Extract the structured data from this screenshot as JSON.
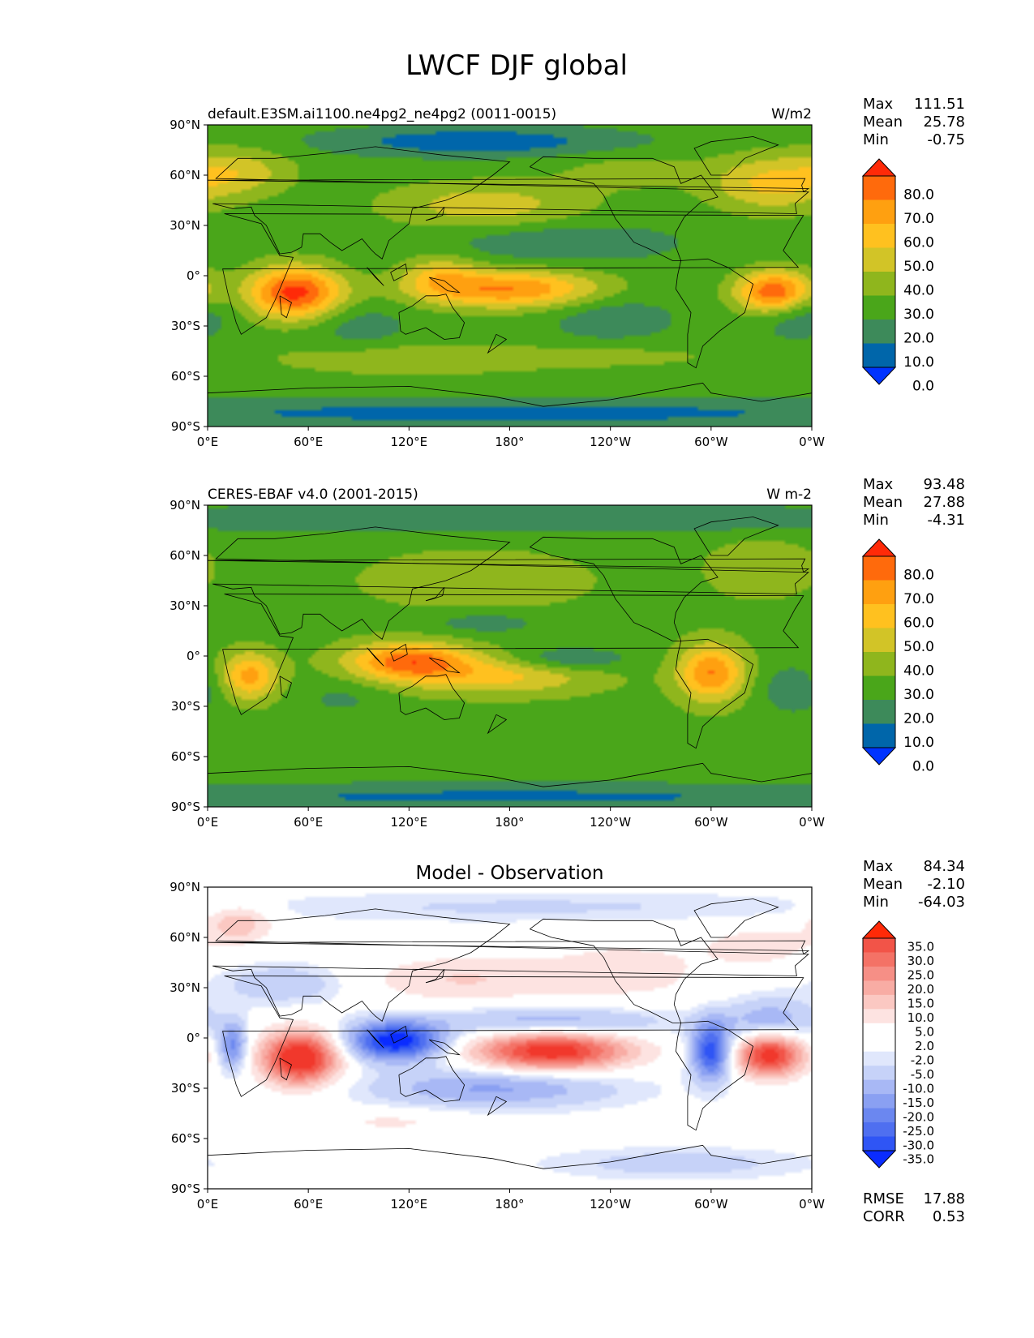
{
  "figure": {
    "title": "LWCF DJF global",
    "colors": {
      "seq": [
        "#0033ff",
        "#0066aa",
        "#3d8a5a",
        "#4aa61a",
        "#8fb61d",
        "#d2c427",
        "#ffc11f",
        "#ffa010",
        "#ff6a0c",
        "#ff2a08"
      ],
      "div": [
        "#0a2cff",
        "#2f55f5",
        "#4f6ff0",
        "#6b87f0",
        "#8aa0f2",
        "#a8b8f5",
        "#c6d2f8",
        "#e0e7fc",
        "#ffffff",
        "#ffffff",
        "#fde3e1",
        "#fbc8c2",
        "#f8aca4",
        "#f68f86",
        "#f47266",
        "#f25448",
        "#f1382c",
        "#ff2a08"
      ]
    }
  },
  "chart_data": [
    {
      "type": "heatmap",
      "subtitle_left": "default.E3SM.ai1100.ne4pg2_ne4pg2 (0011-0015)",
      "subtitle_center": "",
      "subtitle_right": "W/m2",
      "stats": [
        {
          "label": "Max",
          "value": "111.51"
        },
        {
          "label": "Mean",
          "value": "25.78"
        },
        {
          "label": "Min",
          "value": "-0.75"
        }
      ],
      "extra_stats": [],
      "x_ticks": [
        "0°E",
        "60°E",
        "120°E",
        "180°",
        "120°W",
        "60°W",
        "0°W"
      ],
      "y_ticks": [
        "90°N",
        "60°N",
        "30°N",
        "0°",
        "30°S",
        "60°S",
        "90°S"
      ],
      "xlim": [
        0,
        360
      ],
      "ylim": [
        -90,
        90
      ],
      "colorbar": {
        "ticks": [
          "80.0",
          "70.0",
          "60.0",
          "50.0",
          "40.0",
          "30.0",
          "20.0",
          "10.0",
          "0.0"
        ],
        "levels": [
          0,
          10,
          20,
          30,
          40,
          50,
          60,
          70,
          80
        ],
        "extend": "both"
      },
      "fields": {
        "base": 24,
        "blobs": [
          {
            "lon": 52,
            "lat": -10,
            "slon": 20,
            "slat": 11,
            "amp": 60
          },
          {
            "lon": 338,
            "lat": -10,
            "slon": 16,
            "slat": 9,
            "amp": 58
          },
          {
            "lon": 180,
            "lat": -8,
            "slon": 38,
            "slat": 8,
            "amp": 46
          },
          {
            "lon": 138,
            "lat": 0,
            "slon": 16,
            "slat": 9,
            "amp": 22
          },
          {
            "lon": 165,
            "lat": 42,
            "slon": 42,
            "slat": 10,
            "amp": 22
          },
          {
            "lon": 335,
            "lat": 55,
            "slon": 26,
            "slat": 12,
            "amp": 28
          },
          {
            "lon": 20,
            "lat": 62,
            "slon": 22,
            "slat": 10,
            "amp": 20
          },
          {
            "lon": 250,
            "lat": 62,
            "slon": 30,
            "slat": 8,
            "amp": 10
          },
          {
            "lon": 120,
            "lat": -50,
            "slon": 60,
            "slat": 7,
            "amp": 14
          },
          {
            "lon": 250,
            "lat": -48,
            "slon": 50,
            "slat": 6,
            "amp": 8
          },
          {
            "lon": 210,
            "lat": 20,
            "slon": 45,
            "slat": 8,
            "amp": -14
          },
          {
            "lon": 240,
            "lat": -25,
            "slon": 25,
            "slat": 10,
            "amp": -12
          },
          {
            "lon": 350,
            "lat": -22,
            "slon": 16,
            "slat": 10,
            "amp": -16
          },
          {
            "lon": 90,
            "lat": -30,
            "slon": 20,
            "slat": 10,
            "amp": -10
          },
          {
            "lon": 160,
            "lat": 80,
            "slon": 60,
            "slat": 6,
            "amp": -22
          },
          {
            "lon": 180,
            "lat": -82,
            "slon": 200,
            "slat": 6,
            "amp": -18
          }
        ]
      }
    },
    {
      "type": "heatmap",
      "subtitle_left": "CERES-EBAF v4.0 (2001-2015)",
      "subtitle_center": "",
      "subtitle_right": "W m-2",
      "stats": [
        {
          "label": "Max",
          "value": "93.48"
        },
        {
          "label": "Mean",
          "value": "27.88"
        },
        {
          "label": "Min",
          "value": "-4.31"
        }
      ],
      "extra_stats": [],
      "x_ticks": [
        "0°E",
        "60°E",
        "120°E",
        "180°",
        "120°W",
        "60°W",
        "0°W"
      ],
      "y_ticks": [
        "90°N",
        "60°N",
        "30°N",
        "0°",
        "30°S",
        "60°S",
        "90°S"
      ],
      "xlim": [
        0,
        360
      ],
      "ylim": [
        -90,
        90
      ],
      "colorbar": {
        "ticks": [
          "80.0",
          "70.0",
          "60.0",
          "50.0",
          "40.0",
          "30.0",
          "20.0",
          "10.0",
          "0.0"
        ],
        "levels": [
          0,
          10,
          20,
          30,
          40,
          50,
          60,
          70,
          80
        ],
        "extend": "both"
      },
      "fields": {
        "base": 26,
        "blobs": [
          {
            "lon": 25,
            "lat": -12,
            "slon": 12,
            "slat": 10,
            "amp": 38
          },
          {
            "lon": 300,
            "lat": -10,
            "slon": 14,
            "slat": 12,
            "amp": 44
          },
          {
            "lon": 120,
            "lat": -3,
            "slon": 26,
            "slat": 8,
            "amp": 48
          },
          {
            "lon": 175,
            "lat": -12,
            "slon": 40,
            "slat": 8,
            "amp": 26
          },
          {
            "lon": 160,
            "lat": 45,
            "slon": 45,
            "slat": 12,
            "amp": 14
          },
          {
            "lon": 330,
            "lat": 52,
            "slon": 22,
            "slat": 12,
            "amp": 14
          },
          {
            "lon": 215,
            "lat": -2,
            "slon": 25,
            "slat": 5,
            "amp": -18
          },
          {
            "lon": 350,
            "lat": -20,
            "slon": 14,
            "slat": 10,
            "amp": -14
          },
          {
            "lon": 80,
            "lat": -25,
            "slon": 18,
            "slat": 8,
            "amp": -8
          },
          {
            "lon": 165,
            "lat": 20,
            "slon": 25,
            "slat": 5,
            "amp": -12
          },
          {
            "lon": 180,
            "lat": 82,
            "slon": 220,
            "slat": 6,
            "amp": -16
          },
          {
            "lon": 180,
            "lat": -84,
            "slon": 220,
            "slat": 6,
            "amp": -18
          }
        ]
      }
    },
    {
      "type": "heatmap",
      "subtitle_left": "",
      "subtitle_center": "Model - Observation",
      "subtitle_right": "",
      "stats": [
        {
          "label": "Max",
          "value": "84.34"
        },
        {
          "label": "Mean",
          "value": "-2.10"
        },
        {
          "label": "Min",
          "value": "-64.03"
        }
      ],
      "extra_stats": [
        {
          "label": "RMSE",
          "value": "17.88"
        },
        {
          "label": "CORR",
          "value": "0.53"
        }
      ],
      "x_ticks": [
        "0°E",
        "60°E",
        "120°E",
        "180°",
        "120°W",
        "60°W",
        "0°W"
      ],
      "y_ticks": [
        "90°N",
        "60°N",
        "30°N",
        "0°",
        "30°S",
        "60°S",
        "90°S"
      ],
      "xlim": [
        0,
        360
      ],
      "ylim": [
        -90,
        90
      ],
      "colorbar": {
        "ticks": [
          "35.0",
          "30.0",
          "25.0",
          "20.0",
          "15.0",
          "10.0",
          "5.0",
          "2.0",
          "-2.0",
          "-5.0",
          "-10.0",
          "-15.0",
          "-20.0",
          "-25.0",
          "-30.0",
          "-35.0"
        ],
        "levels": [
          -35,
          -30,
          -25,
          -20,
          -15,
          -10,
          -5,
          -2,
          2,
          5,
          10,
          15,
          20,
          25,
          30,
          35
        ],
        "extend": "both"
      },
      "fields": {
        "base": 0,
        "blobs": [
          {
            "lon": 55,
            "lat": -12,
            "slon": 16,
            "slat": 11,
            "amp": 44
          },
          {
            "lon": 335,
            "lat": -10,
            "slon": 14,
            "slat": 9,
            "amp": 40
          },
          {
            "lon": 205,
            "lat": -8,
            "slon": 32,
            "slat": 8,
            "amp": 40
          },
          {
            "lon": 112,
            "lat": -2,
            "slon": 20,
            "slat": 8,
            "amp": -40
          },
          {
            "lon": 300,
            "lat": -8,
            "slon": 8,
            "slat": 12,
            "amp": -34
          },
          {
            "lon": 15,
            "lat": -5,
            "slon": 6,
            "slat": 10,
            "amp": -22
          },
          {
            "lon": 170,
            "lat": -30,
            "slon": 50,
            "slat": 8,
            "amp": -16
          },
          {
            "lon": 205,
            "lat": 10,
            "slon": 50,
            "slat": 6,
            "amp": -14
          },
          {
            "lon": 45,
            "lat": 32,
            "slon": 25,
            "slat": 8,
            "amp": -10
          },
          {
            "lon": 335,
            "lat": 10,
            "slon": 20,
            "slat": 10,
            "amp": -14
          },
          {
            "lon": 150,
            "lat": 35,
            "slon": 40,
            "slat": 10,
            "amp": 10
          },
          {
            "lon": 250,
            "lat": 40,
            "slon": 40,
            "slat": 15,
            "amp": 7
          },
          {
            "lon": 330,
            "lat": 55,
            "slon": 22,
            "slat": 8,
            "amp": 8
          },
          {
            "lon": 18,
            "lat": 68,
            "slon": 14,
            "slat": 8,
            "amp": 14
          },
          {
            "lon": 200,
            "lat": 78,
            "slon": 120,
            "slat": 6,
            "amp": -6
          },
          {
            "lon": 280,
            "lat": -75,
            "slon": 50,
            "slat": 6,
            "amp": -8
          },
          {
            "lon": 110,
            "lat": -50,
            "slon": 30,
            "slat": 5,
            "amp": 6
          }
        ]
      }
    }
  ]
}
